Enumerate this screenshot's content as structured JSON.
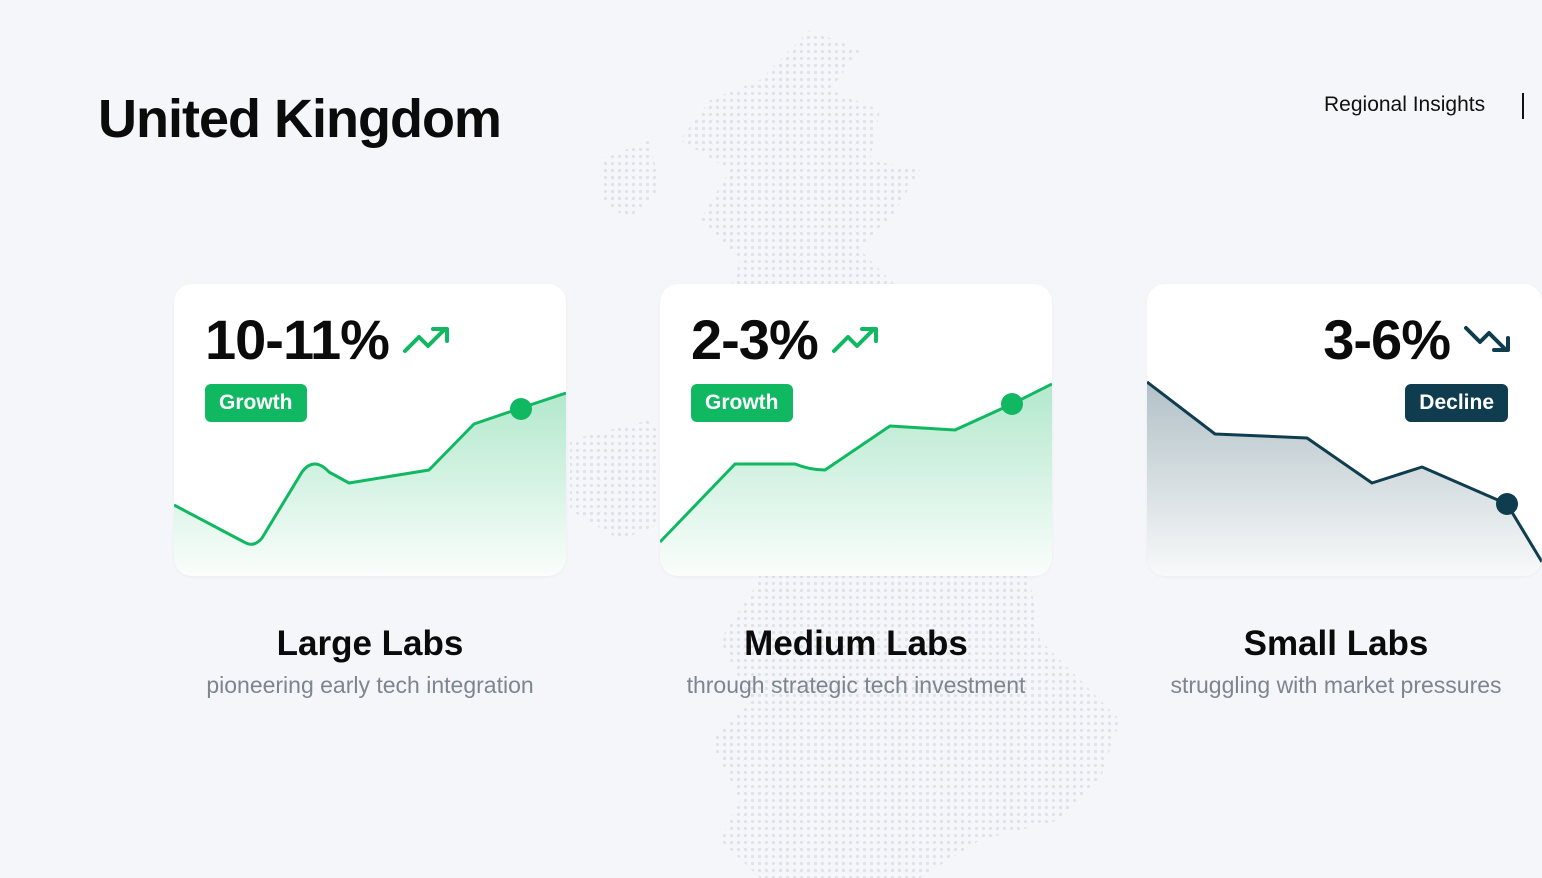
{
  "page": {
    "title": "United Kingdom",
    "header_link": "Regional Insights"
  },
  "colors": {
    "background": "#f4f6f9",
    "growth": "#10b862",
    "decline": "#0f3d4f",
    "muted_text": "#7d8590"
  },
  "cards": [
    {
      "value": "10-11%",
      "badge": "Growth",
      "trend": "up",
      "icon": "trending-up-icon",
      "title": "Large Labs",
      "subtitle": "pioneering early tech integration"
    },
    {
      "value": "2-3%",
      "badge": "Growth",
      "trend": "up",
      "icon": "trending-up-icon",
      "title": "Medium Labs",
      "subtitle": "through strategic tech investment"
    },
    {
      "value": "3-6%",
      "badge": "Decline",
      "trend": "down",
      "icon": "trending-down-icon",
      "title": "Small Labs",
      "subtitle": "struggling with market pressures"
    }
  ]
}
